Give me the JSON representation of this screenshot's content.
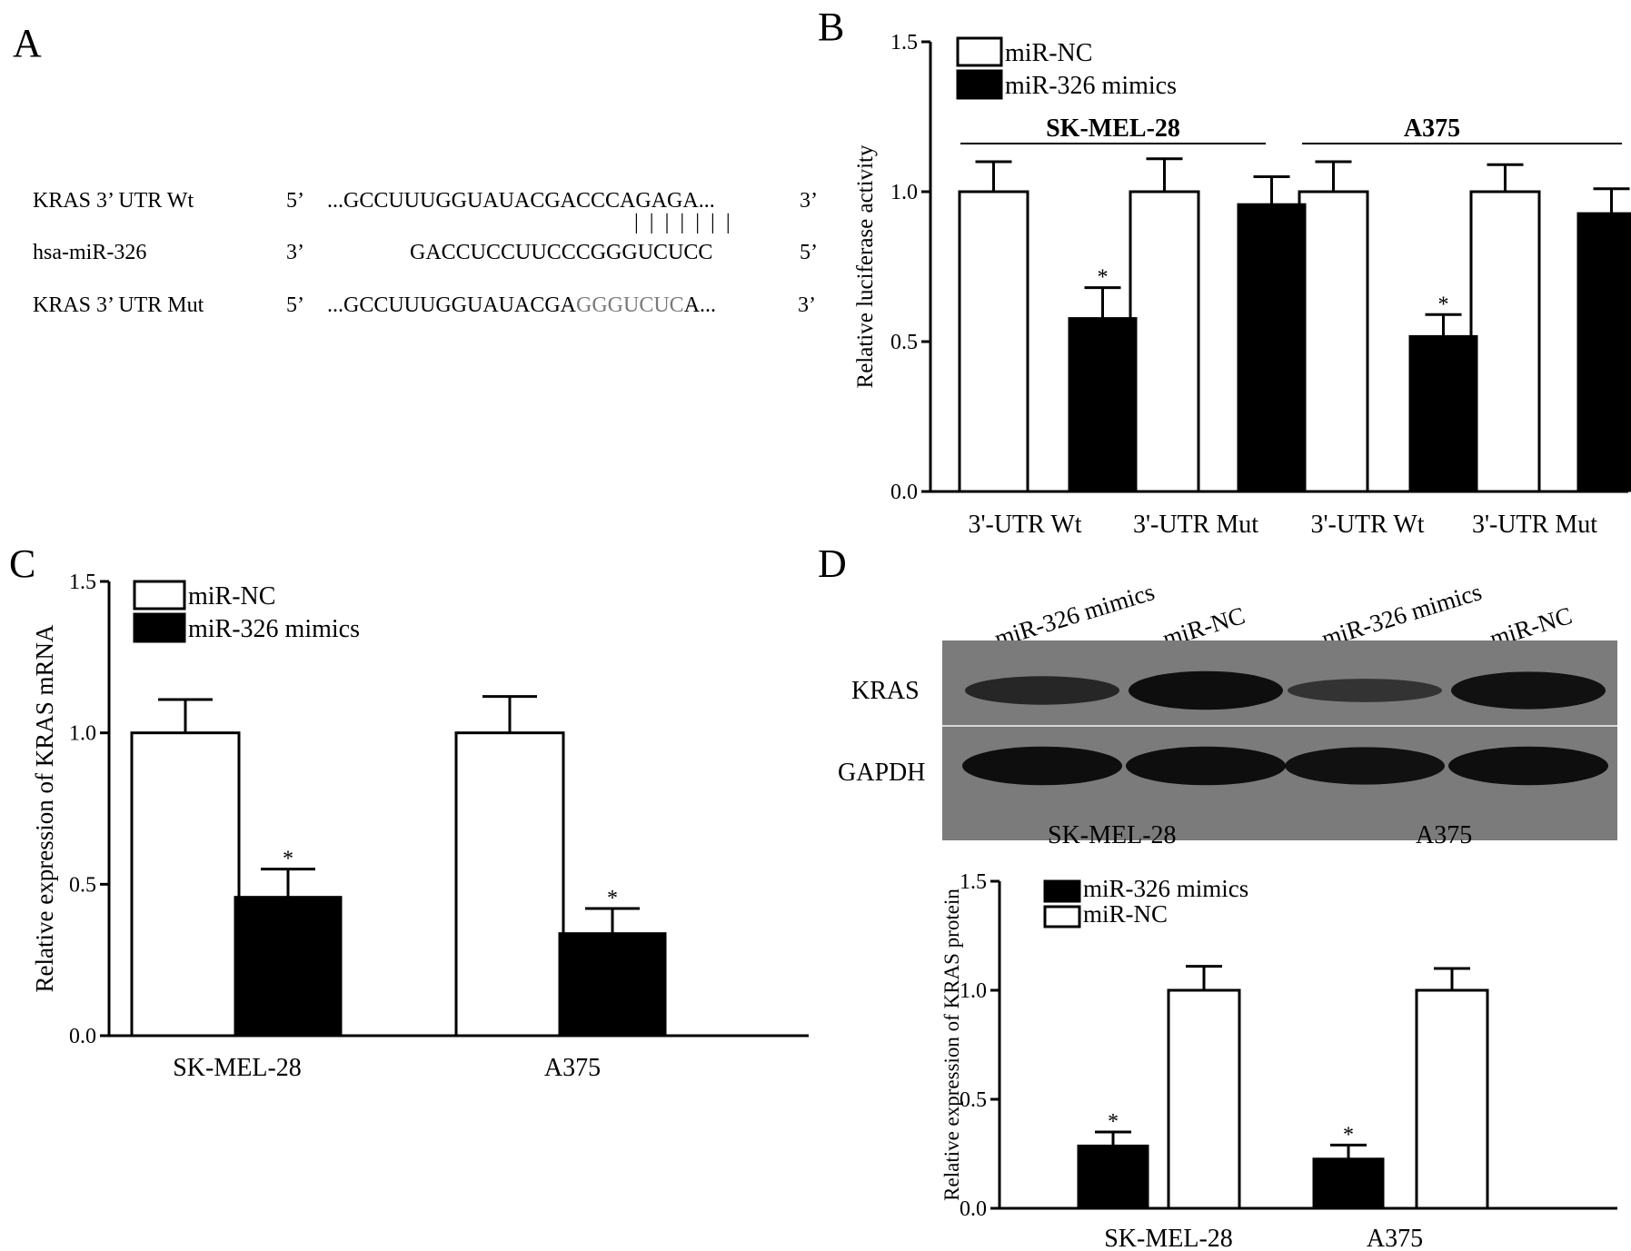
{
  "panels": {
    "a": "A",
    "b": "B",
    "c": "C",
    "d": "D"
  },
  "sequence": {
    "rows": [
      {
        "name": "KRAS 3’ UTR Wt",
        "left_end": "5’",
        "seq": "...GCCUUUGGUAUACGACCCAGAGA...",
        "right_end": "3’"
      },
      {
        "name": "hsa-miR-326",
        "left_end": "3’",
        "seq": "GACCUCCUUCCCGGGUCUCC",
        "right_end": "5’"
      },
      {
        "name": "KRAS 3’ UTR Mut",
        "left_end": "5’",
        "seq_prefix": "...GCCUUUGGUAUACGA",
        "seq_mut": "GGGUCUC",
        "seq_suffix": "A...",
        "right_end": "3’"
      }
    ],
    "pairing_lines": "| | | | | | |",
    "mut_color": "#7a7a7a"
  },
  "chart_data": [
    {
      "id": "B",
      "type": "bar",
      "ylabel": "Relative luciferase activity",
      "ylim": [
        0,
        1.5
      ],
      "yticks": [
        "0.0",
        "0.5",
        "1.0",
        "1.5"
      ],
      "categories": [
        "3'-UTR Wt",
        "3'-UTR Mut",
        "3'-UTR Wt",
        "3'-UTR Mut"
      ],
      "groups": [
        {
          "label": "SK-MEL-28",
          "span": [
            0,
            1
          ]
        },
        {
          "label": "A375",
          "span": [
            2,
            3
          ]
        }
      ],
      "series": [
        {
          "name": "miR-NC",
          "color": "#ffffff",
          "values": [
            1.0,
            1.0,
            1.0,
            1.0
          ],
          "errors": [
            0.1,
            0.11,
            0.1,
            0.09
          ]
        },
        {
          "name": "miR-326 mimics",
          "color": "#000000",
          "values": [
            0.58,
            0.96,
            0.52,
            0.93
          ],
          "errors": [
            0.1,
            0.09,
            0.07,
            0.08
          ]
        }
      ],
      "significance": [
        {
          "series": 1,
          "index": 0,
          "mark": "*"
        },
        {
          "series": 1,
          "index": 2,
          "mark": "*"
        }
      ],
      "legend": "top-left"
    },
    {
      "id": "C",
      "type": "bar",
      "ylabel": "Relative expression of KRAS mRNA",
      "ylim": [
        0,
        1.5
      ],
      "yticks": [
        "0.0",
        "0.5",
        "1.0",
        "1.5"
      ],
      "categories": [
        "SK-MEL-28",
        "A375"
      ],
      "series": [
        {
          "name": "miR-NC",
          "color": "#ffffff",
          "values": [
            1.0,
            1.0
          ],
          "errors": [
            0.11,
            0.12
          ]
        },
        {
          "name": "miR-326 mimics",
          "color": "#000000",
          "values": [
            0.46,
            0.34
          ],
          "errors": [
            0.09,
            0.08
          ]
        }
      ],
      "significance": [
        {
          "series": 1,
          "index": 0,
          "mark": "*"
        },
        {
          "series": 1,
          "index": 1,
          "mark": "*"
        }
      ],
      "legend": "top-left"
    },
    {
      "id": "D",
      "type": "bar",
      "ylabel": "Relative expression of KRAS protein",
      "ylim": [
        0,
        1.5
      ],
      "yticks": [
        "0.0",
        "0.5",
        "1.0",
        "1.5"
      ],
      "categories": [
        "SK-MEL-28",
        "A375"
      ],
      "series": [
        {
          "name": "miR-326 mimics",
          "color": "#000000",
          "values": [
            0.29,
            0.23
          ],
          "errors": [
            0.06,
            0.06
          ]
        },
        {
          "name": "miR-NC",
          "color": "#ffffff",
          "values": [
            1.0,
            1.0
          ],
          "errors": [
            0.11,
            0.1
          ]
        }
      ],
      "significance": [
        {
          "series": 0,
          "index": 0,
          "mark": "*"
        },
        {
          "series": 0,
          "index": 1,
          "mark": "*"
        }
      ],
      "legend": "top-left"
    }
  ],
  "blot": {
    "lanes": [
      "miR-326 mimics",
      "miR-NC",
      "miR-326 mimics",
      "miR-NC"
    ],
    "rows": [
      "KRAS",
      "GAPDH"
    ],
    "cells": [
      "SK-MEL-28",
      "A375"
    ],
    "background": "#7b7b7b",
    "kras_intensity": [
      0.55,
      0.95,
      0.35,
      0.9
    ],
    "gapdh_intensity": [
      0.95,
      0.95,
      0.9,
      0.95
    ]
  }
}
